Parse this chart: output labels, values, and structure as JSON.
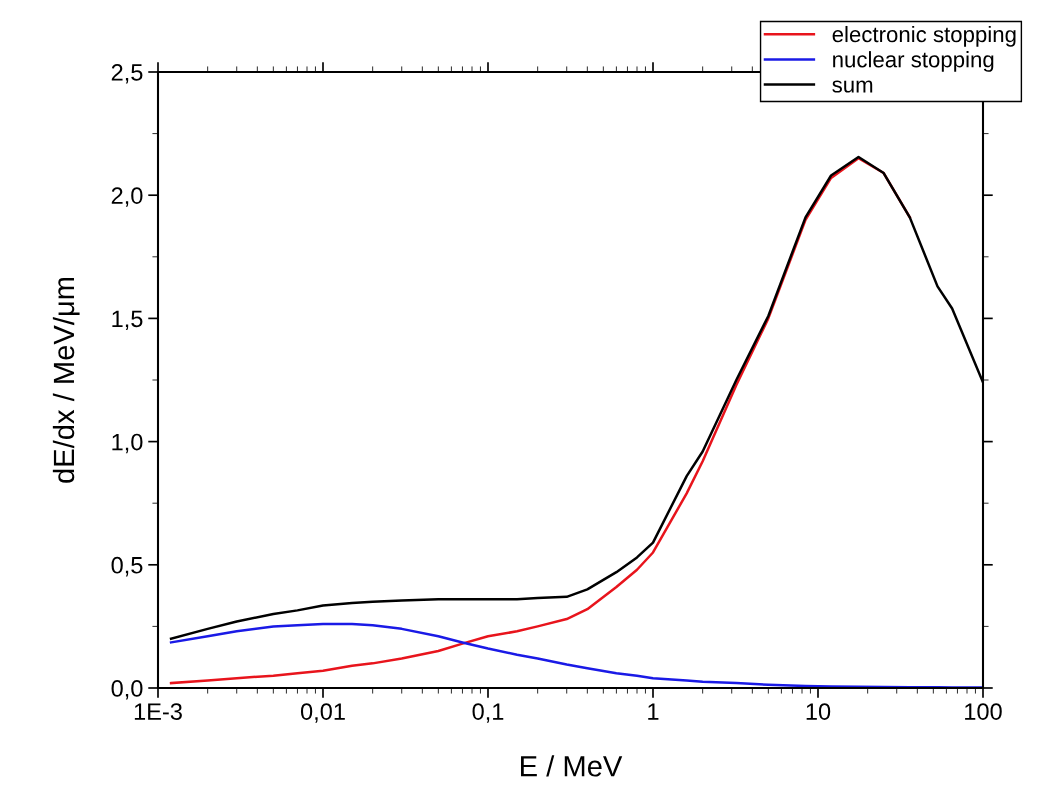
{
  "chart_data": {
    "type": "line",
    "xlabel": "E / MeV",
    "ylabel": "dE/dx / MeV/μm",
    "log": "x",
    "xlim": [
      0.001,
      100
    ],
    "xticks": [
      {
        "value": 0.001,
        "label": "1E-3"
      },
      {
        "value": 0.01,
        "label": "0,01"
      },
      {
        "value": 0.1,
        "label": "0,1"
      },
      1,
      10,
      100
    ],
    "ylim": [
      0,
      2.5
    ],
    "yticks": [
      {
        "value": 0,
        "label": "0,0"
      },
      {
        "value": 0.5,
        "label": "0,5"
      },
      {
        "value": 1.0,
        "label": "1,0"
      },
      {
        "value": 1.5,
        "label": "1,5"
      },
      {
        "value": 2.0,
        "label": "2,0"
      },
      {
        "value": 2.5,
        "label": "2,5"
      }
    ],
    "grid": false,
    "legend": "top right",
    "marker": "none",
    "line_style": "solid",
    "x": [
      0.0012,
      0.002,
      0.003,
      0.005,
      0.007,
      0.01,
      0.015,
      0.02,
      0.03,
      0.05,
      0.07,
      0.1,
      0.15,
      0.2,
      0.3,
      0.4,
      0.6,
      0.8,
      1,
      1.6,
      2,
      3.2,
      5,
      8.4,
      12,
      17.6,
      25,
      36,
      53,
      65,
      100
    ],
    "series": [
      {
        "name": "electronic stopping",
        "color": "#e8141c",
        "values": [
          0.02,
          0.03,
          0.04,
          0.05,
          0.06,
          0.07,
          0.09,
          0.1,
          0.12,
          0.15,
          0.18,
          0.21,
          0.23,
          0.25,
          0.28,
          0.32,
          0.41,
          0.48,
          0.55,
          0.79,
          0.92,
          1.23,
          1.5,
          1.9,
          2.07,
          2.15,
          2.09,
          1.91,
          null,
          null,
          null
        ]
      },
      {
        "name": "nuclear stopping",
        "color": "#1a1ae6",
        "values": [
          0.185,
          0.21,
          0.23,
          0.25,
          0.255,
          0.26,
          0.26,
          0.255,
          0.24,
          0.21,
          0.185,
          0.16,
          0.135,
          0.12,
          0.095,
          0.08,
          0.06,
          0.05,
          0.04,
          0.03,
          0.025,
          0.02,
          0.013,
          0.008,
          0.006,
          0.005,
          0.004,
          0.003,
          0.003,
          0.002,
          0.002
        ]
      },
      {
        "name": "sum",
        "color": "#000000",
        "values": [
          0.2,
          0.24,
          0.27,
          0.3,
          0.315,
          0.335,
          0.345,
          0.35,
          0.355,
          0.36,
          0.36,
          0.36,
          0.36,
          0.365,
          0.37,
          0.4,
          0.47,
          0.53,
          0.59,
          0.86,
          0.96,
          1.25,
          1.51,
          1.91,
          2.08,
          2.155,
          2.09,
          1.91,
          1.63,
          1.54,
          1.24
        ]
      }
    ]
  }
}
